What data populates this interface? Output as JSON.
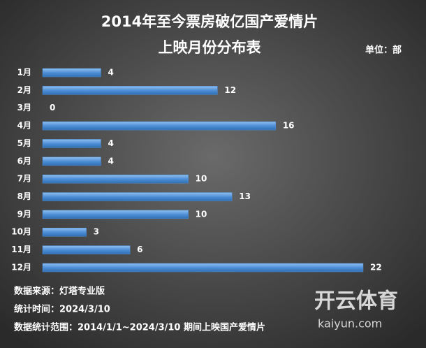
{
  "chart_data": {
    "type": "barh",
    "title": [
      "2014年至今票房破亿国产爱情片",
      "上映月份分布表"
    ],
    "unit_label": "单位：部",
    "categories": [
      "1月",
      "2月",
      "3月",
      "4月",
      "5月",
      "6月",
      "7月",
      "8月",
      "9月",
      "10月",
      "11月",
      "12月"
    ],
    "values": [
      4,
      12,
      0,
      16,
      4,
      4,
      10,
      13,
      10,
      3,
      6,
      22
    ],
    "color": "#4f8fd6",
    "notes": [
      "数据来源：灯塔专业版",
      "统计时间：2024/3/10",
      "数据统计范围：2014/1/1~2024/3/10 期间上映国产爱情片"
    ],
    "watermark": [
      "开云体育",
      "kaiyun.com"
    ]
  }
}
